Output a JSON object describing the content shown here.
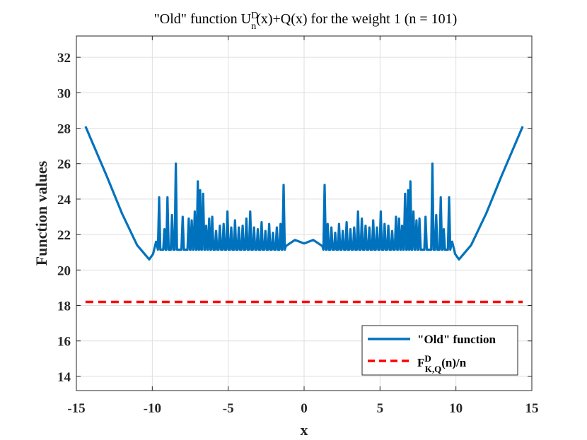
{
  "chart_data": {
    "type": "line",
    "title": {
      "pre": "\"Old\" function U",
      "sup": "D",
      "sub": "n",
      "post": "(x)+Q(x) for the weight 1  (n = 101)"
    },
    "xlabel": "x",
    "ylabel": "Function values",
    "xlim": [
      -15,
      15
    ],
    "ylim": [
      13.2,
      33.2
    ],
    "xticks": [
      -15,
      -10,
      -5,
      0,
      5,
      10,
      15
    ],
    "xtick_labels": [
      "-15",
      "-10",
      "-5",
      "0",
      "5",
      "10",
      "15"
    ],
    "yticks": [
      14,
      16,
      18,
      20,
      22,
      24,
      26,
      28,
      30,
      32
    ],
    "ytick_labels": [
      "14",
      "16",
      "18",
      "20",
      "22",
      "24",
      "26",
      "28",
      "30",
      "32"
    ],
    "grid": true,
    "series": [
      {
        "name": "\"Old\" function",
        "color": "#0072BD",
        "style": "solid",
        "domain": [
          -14.4,
          14.4
        ],
        "outer_points": [
          [
            10.2,
            20.6
          ],
          [
            11,
            21.4
          ],
          [
            12,
            23.2
          ],
          [
            13,
            25.3
          ],
          [
            14.4,
            28.1
          ]
        ],
        "oscillation_floor": 21.1,
        "center_region": [
          [
            -2,
            21.4
          ],
          [
            -1.2,
            21.35
          ],
          [
            -0.6,
            21.7
          ],
          [
            0,
            21.5
          ],
          [
            0.6,
            21.7
          ],
          [
            1.2,
            21.35
          ],
          [
            2,
            21.4
          ]
        ],
        "spike_peaks": [
          [
            1.35,
            24.8
          ],
          [
            1.55,
            22.6
          ],
          [
            1.8,
            22.4
          ],
          [
            2.05,
            22.1
          ],
          [
            2.3,
            22.6
          ],
          [
            2.55,
            22.2
          ],
          [
            2.8,
            22.7
          ],
          [
            3.05,
            22.3
          ],
          [
            3.3,
            22.4
          ],
          [
            3.55,
            23.3
          ],
          [
            3.8,
            22.9
          ],
          [
            4.05,
            22.5
          ],
          [
            4.3,
            22.4
          ],
          [
            4.55,
            22.8
          ],
          [
            4.8,
            22.4
          ],
          [
            5.05,
            23.3
          ],
          [
            5.3,
            22.6
          ],
          [
            5.55,
            22.5
          ],
          [
            5.8,
            22.2
          ],
          [
            6.05,
            23.0
          ],
          [
            6.25,
            22.9
          ],
          [
            6.45,
            22.5
          ],
          [
            6.65,
            24.3
          ],
          [
            6.85,
            24.5
          ],
          [
            7.0,
            25.0
          ],
          [
            7.2,
            23.3
          ],
          [
            7.4,
            22.8
          ],
          [
            7.6,
            22.9
          ],
          [
            8.0,
            23.0
          ],
          [
            8.45,
            26.0
          ],
          [
            8.7,
            23.1
          ],
          [
            9.0,
            24.1
          ],
          [
            9.2,
            22.3
          ],
          [
            9.55,
            24.1
          ]
        ]
      },
      {
        "name": "F^D_{K,Q}(n)/n",
        "color": "#FF0000",
        "style": "dashed",
        "points": [
          [
            -14.4,
            18.2
          ],
          [
            14.4,
            18.2
          ]
        ]
      }
    ],
    "legend": {
      "position": "bottom-right",
      "entries": [
        {
          "label": "\"Old\" function"
        },
        {
          "base": "F",
          "sup": "D",
          "sub": "K,Q",
          "post": "(n)/n"
        }
      ]
    }
  }
}
